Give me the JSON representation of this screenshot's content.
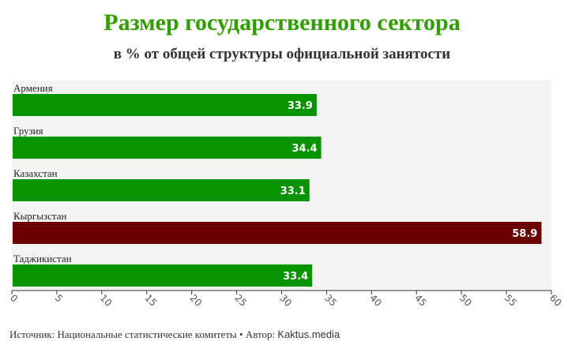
{
  "title": "Размер государственного сектора",
  "subtitle": "в % от общей структуры официальной занятости",
  "footer": {
    "source_label": "Источник:",
    "source_text": "Национальные статистические комитеты",
    "separator": "•",
    "author_label": "Автор:",
    "author_text": "Kaktus.media"
  },
  "colors": {
    "default_bar": "#079400",
    "highlight_bar": "#6b0000",
    "title": "#2e9e00",
    "plot_background": "#f4f4f4"
  },
  "chart_data": {
    "type": "bar",
    "orientation": "horizontal",
    "title": "Размер государственного сектора",
    "subtitle": "в % от общей структуры официальной занятости",
    "categories": [
      "Армения",
      "Грузия",
      "Казахстан",
      "Кыргызстан",
      "Таджикистан"
    ],
    "values": [
      33.9,
      34.4,
      33.1,
      58.9,
      33.4
    ],
    "highlight": "Кыргызстан",
    "xlim": [
      0,
      60
    ],
    "xticks": [
      0,
      5,
      10,
      15,
      20,
      25,
      30,
      35,
      40,
      45,
      50,
      55,
      60
    ],
    "xlabel": "",
    "ylabel": "",
    "data_labels": true,
    "grid": false,
    "legend": "none"
  }
}
